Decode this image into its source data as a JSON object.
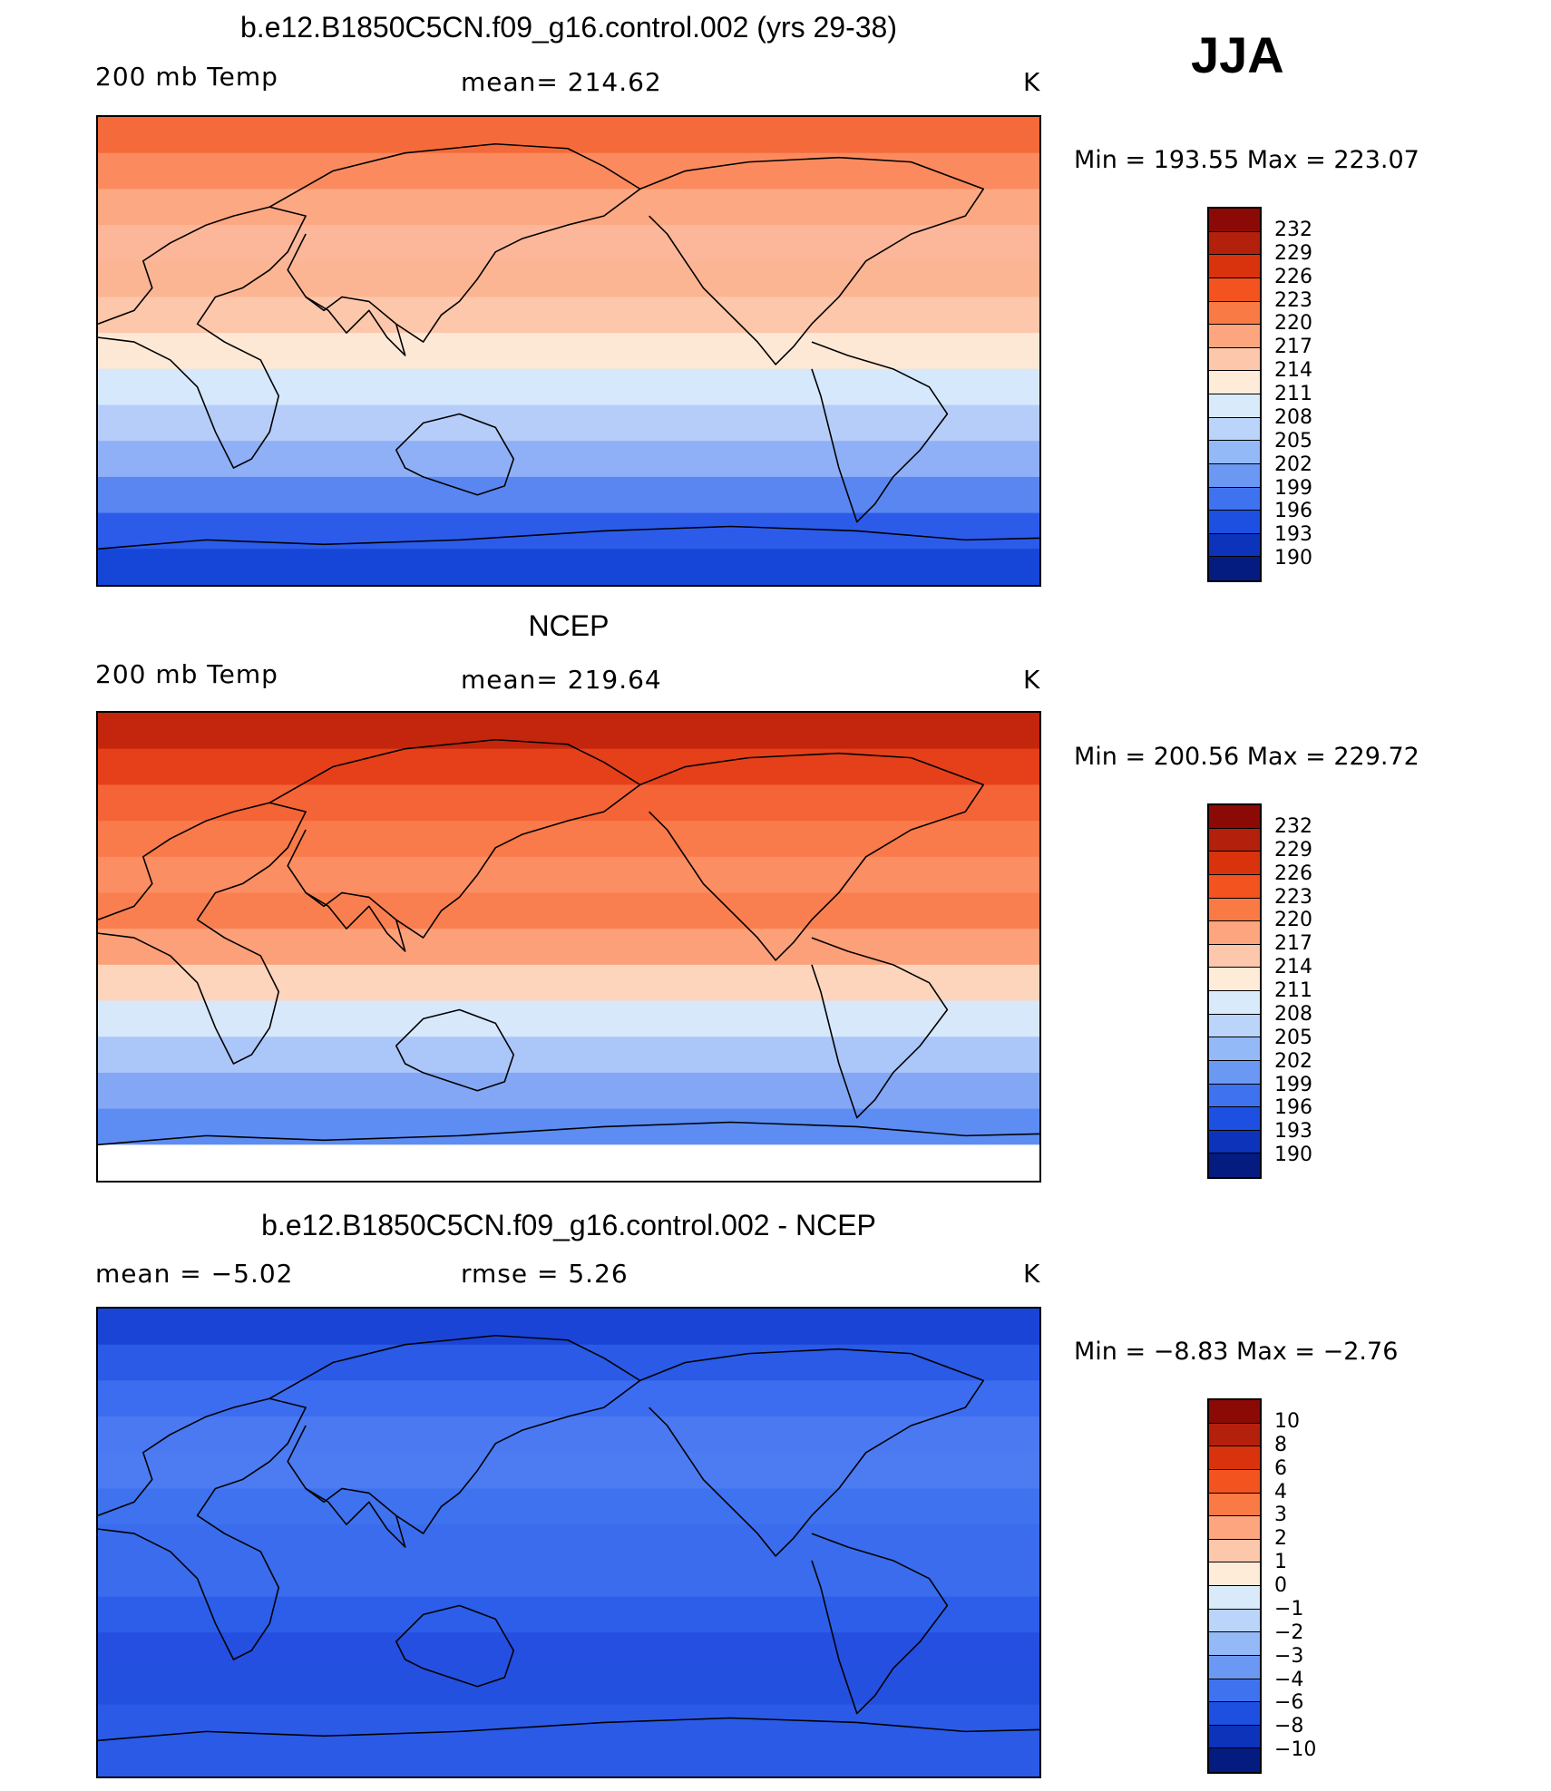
{
  "season": "JJA",
  "panels": [
    {
      "title": "b.e12.B1850C5CN.f09_g16.control.002 (yrs 29-38)",
      "left_label": "200 mb Temp",
      "center_label": "mean=  214.62",
      "units": "K",
      "min_max": "Min  =  193.55  Max  =  223.07",
      "colorbar_labels": [
        "232",
        "229",
        "226",
        "223",
        "220",
        "217",
        "214",
        "211",
        "208",
        "205",
        "202",
        "199",
        "196",
        "193",
        "190"
      ],
      "colorbar_colors": [
        "#8c0a05",
        "#b3200c",
        "#d9330d",
        "#f2531f",
        "#fa7a45",
        "#fca57e",
        "#fdc7ac",
        "#feebd8",
        "#d9ebfb",
        "#bad4fa",
        "#94b9f7",
        "#6b98f3",
        "#3f72ee",
        "#1d4fe1",
        "#0c33b9",
        "#041b7f"
      ],
      "map_bands": [
        "#f46a3a",
        "#fb8b5e",
        "#fca882",
        "#fcb79a",
        "#fcb593",
        "#fdc7ab",
        "#fde8d6",
        "#d6e8fb",
        "#b6cdf9",
        "#8fb0f6",
        "#5a86f1",
        "#2c5bea",
        "#1546d8"
      ]
    },
    {
      "title": "NCEP",
      "left_label": "200 mb Temp",
      "center_label": "mean=  219.64",
      "units": "K",
      "min_max": "Min  =  200.56  Max  =  229.72",
      "colorbar_labels": [
        "232",
        "229",
        "226",
        "223",
        "220",
        "217",
        "214",
        "211",
        "208",
        "205",
        "202",
        "199",
        "196",
        "193",
        "190"
      ],
      "colorbar_colors": [
        "#8c0a05",
        "#b3200c",
        "#d9330d",
        "#f2531f",
        "#fa7a45",
        "#fca57e",
        "#fdc7ac",
        "#feebd8",
        "#d9ebfb",
        "#bad4fa",
        "#94b9f7",
        "#6b98f3",
        "#3f72ee",
        "#1d4fe1",
        "#0c33b9",
        "#041b7f"
      ],
      "map_bands": [
        "#c4260d",
        "#e5401a",
        "#f46437",
        "#f97a4a",
        "#fb8e62",
        "#fa7f50",
        "#fca07a",
        "#fdd5bc",
        "#d7e8fb",
        "#abc6f8",
        "#83a7f5",
        "#5d8df2",
        "#ffffff"
      ]
    },
    {
      "title": "b.e12.B1850C5CN.f09_g16.control.002 - NCEP",
      "left_label": "mean =    −5.02",
      "center_label": "rmse =     5.26",
      "units": "K",
      "min_max": "Min  =   −8.83  Max  =   −2.76",
      "colorbar_labels": [
        "10",
        "8",
        "6",
        "4",
        "3",
        "2",
        "1",
        "0",
        "−1",
        "−2",
        "−3",
        "−4",
        "−6",
        "−8",
        "−10"
      ],
      "colorbar_colors": [
        "#8c0a05",
        "#b3200c",
        "#d9330d",
        "#f2531f",
        "#fa7a45",
        "#fca57e",
        "#fdc7ac",
        "#feebd8",
        "#d9ebfb",
        "#bad4fa",
        "#94b9f7",
        "#6b98f3",
        "#3f72ee",
        "#1d4fe1",
        "#0c33b9",
        "#041b7f"
      ],
      "map_bands": [
        "#1a44d6",
        "#2a5ae6",
        "#3c6df0",
        "#4a79f1",
        "#4d7cf2",
        "#3f72ee",
        "#3a6ced",
        "#3a6ced",
        "#2c5ee9",
        "#244fe0",
        "#2450df",
        "#2b5ae6",
        "#2a5ae6"
      ]
    }
  ]
}
